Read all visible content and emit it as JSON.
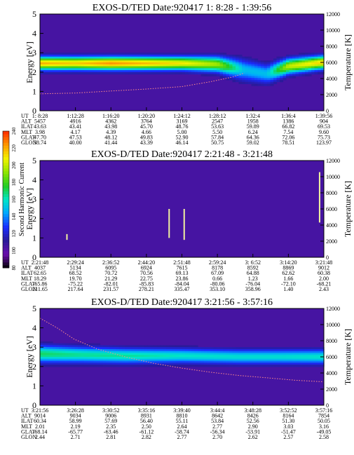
{
  "figure": {
    "colorbar": {
      "label": "Second Harmonic Current",
      "ticks": [
        "80",
        "100",
        "120",
        "140",
        "160",
        "180",
        "200",
        "220",
        "240"
      ],
      "colors": [
        "#000000",
        "#6a0dad",
        "#2a1a9a",
        "#1a2cff",
        "#00a6ff",
        "#00e6c8",
        "#22cc22",
        "#8fe600",
        "#f2f200",
        "#ff9a00",
        "#ff2a00"
      ]
    },
    "panels": [
      {
        "title": "EXOS-D/TED  Date:920417  1: 8:28 - 1:39:56",
        "row_labels": [
          "UT",
          "ALT",
          "ILAT",
          "MLT",
          "GLAT",
          "GLON"
        ],
        "columns": [
          [
            "1: 8:28",
            "5457",
            "43.63",
            "3.98",
            "47.70",
            "38.74"
          ],
          [
            "1:12:28",
            "4916",
            "43.41",
            "4.17",
            "47.53",
            "40.00"
          ],
          [
            "1:16:20",
            "4362",
            "43.98",
            "4.39",
            "48.12",
            "41.44"
          ],
          [
            "1:20:20",
            "3764",
            "45.70",
            "4.66",
            "49.83",
            "43.39"
          ],
          [
            "1:24:12",
            "3169",
            "48.76",
            "5.00",
            "52.90",
            "46.14"
          ],
          [
            "1:28:12",
            "2547",
            "53.63",
            "5.50",
            "57.84",
            "50.75"
          ],
          [
            "1:32:4",
            "1958",
            "59.89",
            "6.24",
            "64.36",
            "59.02"
          ],
          [
            "1:36:4",
            "1386",
            "66.82",
            "7.54",
            "72.06",
            "78.51"
          ],
          [
            "1:39:56",
            "904",
            "69.53",
            "9.60",
            "75.73",
            "123.97"
          ]
        ]
      },
      {
        "title": "EXOS-D/TED  Date:920417  2:21:48 - 3:21:48",
        "row_labels": [
          "UT",
          "ALT",
          "ILAT",
          "MLT",
          "GLAT",
          "GLON"
        ],
        "columns": [
          [
            "2:21:48",
            "4037",
            "62.65",
            "18.29",
            "-65.86",
            "211.65"
          ],
          [
            "2:29:24",
            "5134",
            "68.52",
            "19.70",
            "-75.22",
            "217.64"
          ],
          [
            "2:36:52",
            "6095",
            "70.72",
            "21.29",
            "-82.01",
            "231.57"
          ],
          [
            "2:44:20",
            "6924",
            "70.56",
            "22.75",
            "-85.83",
            "278.21"
          ],
          [
            "2:51:48",
            "7615",
            "69.13",
            "23.86",
            "-84.04",
            "335.47"
          ],
          [
            "2:59:24",
            "8178",
            "67.09",
            "0.66",
            "-80.06",
            "353.10"
          ],
          [
            "3: 6:52",
            "8592",
            "64.88",
            "1.23",
            "-76.04",
            "358.96"
          ],
          [
            "3:14:20",
            "8869",
            "62.62",
            "1.66",
            "-72.10",
            "1.40"
          ],
          [
            "3:21:48",
            "9012",
            "60.38",
            "2.00",
            "-68.21",
            "2.43"
          ]
        ]
      },
      {
        "title": "EXOS-D/TED  Date:920417  3:21:56 - 3:57:16",
        "row_labels": [
          "UT",
          "ALT",
          "ILAT",
          "MLT",
          "GLAT",
          "GLON"
        ],
        "columns": [
          [
            "3:21:56",
            "9014",
            "60.34",
            "2.01",
            "-68.14",
            "2.44"
          ],
          [
            "3:26:28",
            "9034",
            "58.99",
            "2.19",
            "-65.77",
            "2.71"
          ],
          [
            "3:30:52",
            "9006",
            "57.69",
            "2.35",
            "-63.46",
            "2.81"
          ],
          [
            "3:35:16",
            "8931",
            "56.40",
            "2.50",
            "-61.12",
            "2.82"
          ],
          [
            "3:39:40",
            "8810",
            "55.11",
            "2.64",
            "-58.74",
            "2.77"
          ],
          [
            "3:44:4",
            "8642",
            "53.84",
            "2.77",
            "-56.34",
            "2.70"
          ],
          [
            "3:48:28",
            "8426",
            "52.56",
            "2.90",
            "-53.91",
            "2.62"
          ],
          [
            "3:52:52",
            "8164",
            "51.30",
            "3.03",
            "-51.47",
            "2.57"
          ],
          [
            "3:57:16",
            "7854",
            "50.05",
            "3.16",
            "-49.05",
            "2.58"
          ]
        ]
      }
    ]
  },
  "chart_data": [
    {
      "type": "heatmap",
      "title": "EXOS-D/TED  Date:920417  1: 8:28 - 1:39:56",
      "xlabel": "UT",
      "ylabel": "Energy [eV]",
      "y2label": "Temperature [K]",
      "x_ticks": [
        "1: 8:28",
        "1:12:28",
        "1:16:20",
        "1:20:20",
        "1:24:12",
        "1:28:12",
        "1:32:4",
        "1:36:4",
        "1:39:56"
      ],
      "ylim": [
        0,
        5
      ],
      "y_ticks": [
        "0",
        "1",
        "2",
        "3",
        "4",
        "5"
      ],
      "y2lim": [
        0,
        12000
      ],
      "y2_ticks": [
        "0",
        "2000",
        "4000",
        "6000",
        "8000",
        "10000",
        "12000"
      ],
      "colorbar_range": [
        80,
        240
      ],
      "band": {
        "frac": [
          0,
          0.125,
          0.25,
          0.375,
          0.5,
          0.625,
          0.72,
          0.8,
          0.875,
          1
        ],
        "center_eV": [
          2.45,
          2.45,
          2.45,
          2.45,
          2.45,
          2.4,
          2.1,
          1.9,
          2.3,
          2.5
        ],
        "halfwidth_eV": [
          0.35,
          0.35,
          0.35,
          0.35,
          0.35,
          0.4,
          0.55,
          0.5,
          0.4,
          0.35
        ],
        "peak": [
          220,
          215,
          225,
          218,
          210,
          195,
          150,
          150,
          200,
          215
        ]
      },
      "temperature_series": {
        "frac": [
          0,
          0.125,
          0.25,
          0.375,
          0.5,
          0.6,
          0.68,
          0.72
        ],
        "value": [
          2100,
          2200,
          2450,
          2700,
          3000,
          3600,
          4200,
          4700
        ]
      }
    },
    {
      "type": "heatmap",
      "title": "EXOS-D/TED  Date:920417  2:21:48 - 3:21:48",
      "xlabel": "UT",
      "ylabel": "Energy [eV]",
      "y2label": "Temperature [K]",
      "x_ticks": [
        "2:21:48",
        "2:29:24",
        "2:36:52",
        "2:44:20",
        "2:51:48",
        "2:59:24",
        "3: 6:52",
        "3:14:20",
        "3:21:48"
      ],
      "ylim": [
        0,
        5
      ],
      "y_ticks": [
        "0",
        "1",
        "2",
        "3",
        "4",
        "5"
      ],
      "y2lim": [
        0,
        12000
      ],
      "y2_ticks": [
        "0",
        "2000",
        "4000",
        "6000",
        "8000",
        "10000",
        "12000"
      ],
      "colorbar_range": [
        80,
        240
      ],
      "band": null,
      "spikes": [
        {
          "frac": 0.095,
          "from_eV": 0.9,
          "to_eV": 1.2
        },
        {
          "frac": 0.455,
          "from_eV": 1.0,
          "to_eV": 2.5
        },
        {
          "frac": 0.508,
          "from_eV": 0.9,
          "to_eV": 2.5
        },
        {
          "frac": 0.985,
          "from_eV": 1.8,
          "to_eV": 4.4
        }
      ]
    },
    {
      "type": "heatmap",
      "title": "EXOS-D/TED  Date:920417  3:21:56 - 3:57:16",
      "xlabel": "UT",
      "ylabel": "Energy [eV]",
      "y2label": "Temperature [K]",
      "x_ticks": [
        "3:21:56",
        "3:26:28",
        "3:30:52",
        "3:35:16",
        "3:39:40",
        "3:44:4",
        "3:48:28",
        "3:52:52",
        "3:57:16"
      ],
      "ylim": [
        0,
        5
      ],
      "y_ticks": [
        "0",
        "1",
        "2",
        "3",
        "4",
        "5"
      ],
      "y2lim": [
        0,
        12000
      ],
      "y2_ticks": [
        "0",
        "2000",
        "4000",
        "6000",
        "8000",
        "10000",
        "12000"
      ],
      "colorbar_range": [
        80,
        240
      ],
      "band": {
        "frac": [
          0,
          0.15,
          0.3,
          0.5,
          0.7,
          0.85,
          1
        ],
        "center_eV": [
          2.65,
          2.6,
          2.55,
          2.55,
          2.5,
          2.5,
          2.5
        ],
        "halfwidth_eV": [
          0.45,
          0.42,
          0.4,
          0.38,
          0.38,
          0.38,
          0.38
        ],
        "peak": [
          170,
          165,
          165,
          160,
          158,
          158,
          160
        ]
      },
      "temperature_series": {
        "frac": [
          0,
          0.06,
          0.12,
          0.2,
          0.3,
          0.4,
          0.5,
          0.6,
          0.7,
          0.8,
          0.9,
          1
        ],
        "value": [
          10800,
          9600,
          8200,
          7000,
          6000,
          5200,
          4600,
          4100,
          3700,
          3400,
          3100,
          2900
        ]
      }
    }
  ]
}
